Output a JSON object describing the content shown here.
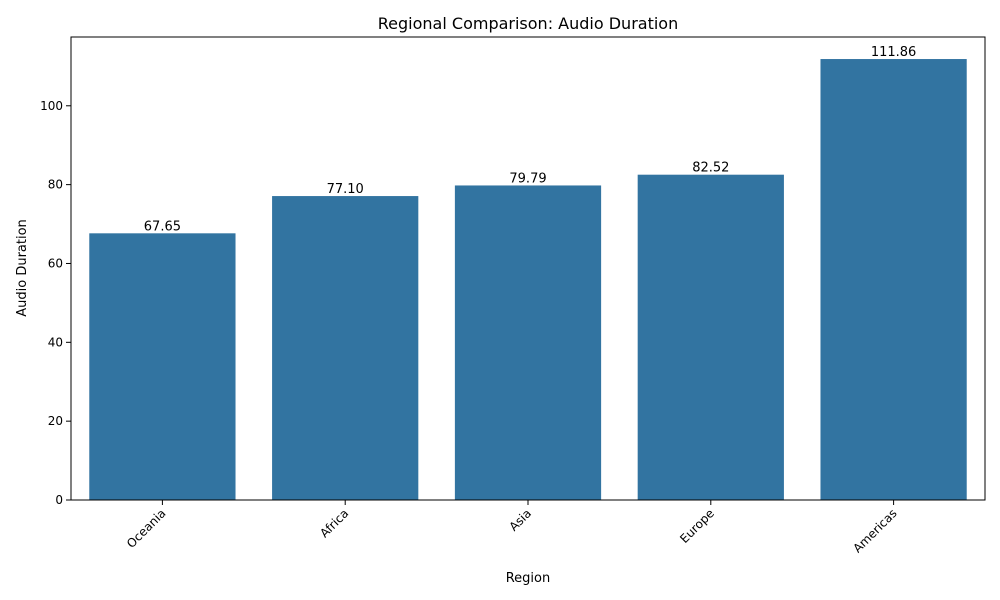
{
  "chart_data": {
    "type": "bar",
    "title": "Regional Comparison: Audio Duration",
    "xlabel": "Region",
    "ylabel": "Audio Duration",
    "categories": [
      "Oceania",
      "Africa",
      "Asia",
      "Europe",
      "Americas"
    ],
    "values": [
      67.65,
      77.1,
      79.79,
      82.52,
      111.86
    ],
    "value_labels": [
      "67.65",
      "77.10",
      "79.79",
      "82.52",
      "111.86"
    ],
    "ylim": [
      0,
      117.45
    ],
    "yticks": [
      0,
      20,
      40,
      60,
      80,
      100
    ],
    "bar_color": "#3274a1",
    "grid": false,
    "legend": "none",
    "xtick_rotation_deg": 45
  }
}
